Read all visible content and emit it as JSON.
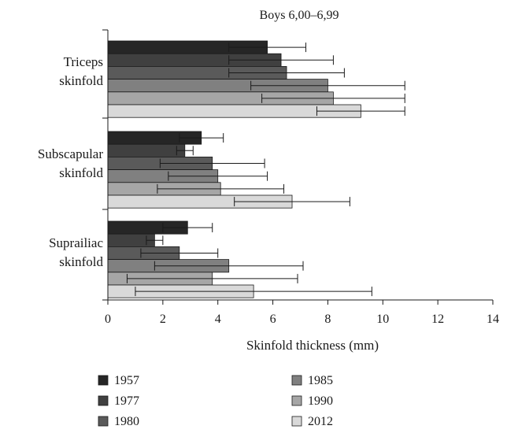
{
  "chart_data": {
    "type": "bar",
    "orientation": "horizontal",
    "title": "Boys 6,00–6,99",
    "xlabel": "Skinfold thickness (mm)",
    "ylabel": "",
    "xlim": [
      0,
      14
    ],
    "xticks": [
      0,
      2,
      4,
      6,
      8,
      10,
      12,
      14
    ],
    "categories": [
      [
        "Triceps",
        "skinfold"
      ],
      [
        "Subscapular",
        "skinfold"
      ],
      [
        "Suprailiac",
        "skinfold"
      ]
    ],
    "series": [
      {
        "name": "1957",
        "color": "#262626",
        "values": [
          5.8,
          3.4,
          2.9
        ],
        "error_low": [
          4.4,
          2.6,
          2.0
        ],
        "error_high": [
          7.2,
          4.2,
          3.8
        ]
      },
      {
        "name": "1977",
        "color": "#404040",
        "values": [
          6.3,
          2.8,
          1.7
        ],
        "error_low": [
          4.4,
          2.5,
          1.4
        ],
        "error_high": [
          8.2,
          3.1,
          2.0
        ]
      },
      {
        "name": "1980",
        "color": "#5a5a5a",
        "values": [
          6.5,
          3.8,
          2.6
        ],
        "error_low": [
          4.4,
          1.9,
          1.2
        ],
        "error_high": [
          8.6,
          5.7,
          4.0
        ]
      },
      {
        "name": "1985",
        "color": "#808080",
        "values": [
          8.0,
          4.0,
          4.4
        ],
        "error_low": [
          5.2,
          2.2,
          1.7
        ],
        "error_high": [
          10.8,
          5.8,
          7.1
        ]
      },
      {
        "name": "1990",
        "color": "#a6a6a6",
        "values": [
          8.2,
          4.1,
          3.8
        ],
        "error_low": [
          5.6,
          1.8,
          0.7
        ],
        "error_high": [
          10.8,
          6.4,
          6.9
        ]
      },
      {
        "name": "2012",
        "color": "#d9d9d9",
        "values": [
          9.2,
          6.7,
          5.3
        ],
        "error_low": [
          7.6,
          4.6,
          1.0
        ],
        "error_high": [
          10.8,
          8.8,
          9.6
        ]
      }
    ],
    "legend_position": "bottom",
    "grid": false
  }
}
